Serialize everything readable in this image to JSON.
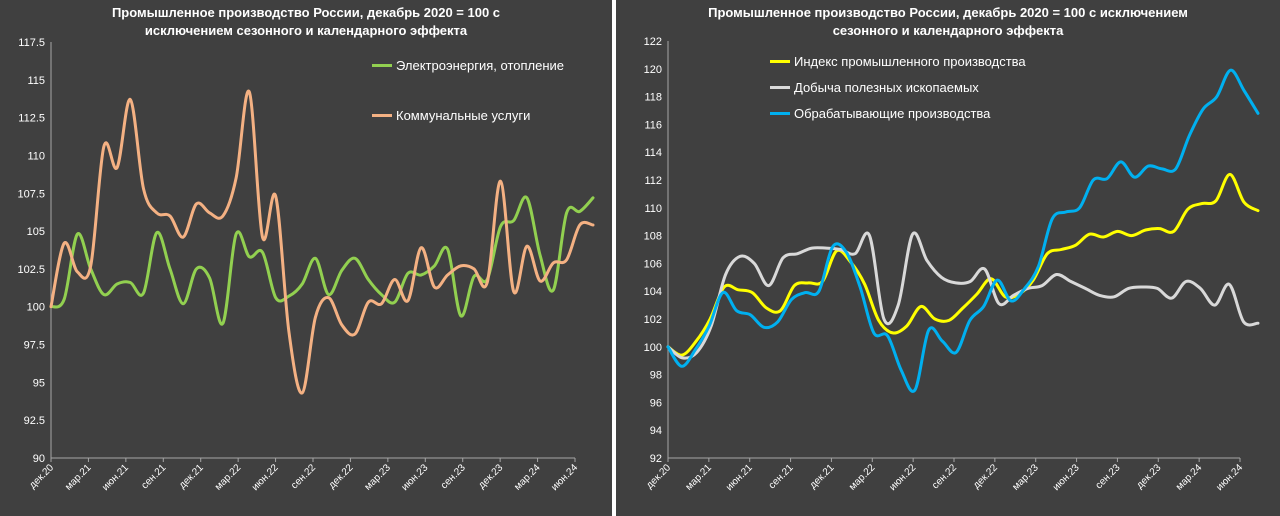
{
  "chart_data": [
    {
      "type": "line",
      "title": [
        "Промышленное производство России, декабрь 2020 = 100 с",
        "исключением сезонного и календарного эффекта"
      ],
      "ylim": [
        90,
        117.5
      ],
      "yticks": [
        "90",
        "92.5",
        "95",
        "97.5",
        "100",
        "102.5",
        "105",
        "107.5",
        "110",
        "112.5",
        "115",
        "117.5"
      ],
      "xticks": [
        "дек.20",
        "мар.21",
        "июн.21",
        "сен.21",
        "дек.21",
        "мар.22",
        "июн.22",
        "сен.22",
        "дек.22",
        "мар.23",
        "июн.23",
        "сен.23",
        "дек.23",
        "мар.24",
        "июн.24"
      ],
      "grid": false,
      "legend": "top-right",
      "series": [
        {
          "name": "Электроэнергия, отопление",
          "color": "#92d050",
          "values": [
            100,
            100.5,
            104.8,
            102.5,
            100.8,
            101.5,
            101.6,
            100.9,
            104.9,
            102.5,
            100.2,
            102.5,
            101.9,
            98.9,
            104.8,
            103.3,
            103.6,
            100.6,
            100.7,
            101.5,
            103.2,
            100.8,
            102.4,
            103.2,
            101.8,
            100.8,
            100.3,
            102.2,
            102.1,
            102.7,
            103.8,
            99.4,
            102.0,
            101.8,
            105.3,
            105.7,
            107.2,
            103.4,
            101.1,
            106.2,
            106.3,
            107.2
          ]
        },
        {
          "name": "Коммунальные услуги",
          "color": "#f4b183",
          "values": [
            100,
            104.2,
            102.3,
            102.7,
            110.6,
            109.2,
            113.7,
            107.8,
            106.2,
            106.0,
            104.6,
            106.8,
            106.2,
            106.0,
            108.5,
            114.2,
            104.6,
            107.3,
            98.3,
            94.3,
            99.3,
            100.6,
            98.8,
            98.2,
            100.3,
            100.2,
            101.8,
            100.4,
            103.9,
            101.3,
            102.1,
            102.7,
            102.5,
            101.6,
            108.3,
            101.0,
            104.0,
            101.7,
            102.9,
            103.1,
            105.4,
            105.4
          ]
        }
      ]
    },
    {
      "type": "line",
      "title": [
        "Промышленное производство России, декабрь 2020 = 100 с исключением",
        "сезонного и календарного эффекта"
      ],
      "ylim": [
        92,
        122
      ],
      "yticks": [
        "92",
        "94",
        "96",
        "98",
        "100",
        "102",
        "104",
        "106",
        "108",
        "110",
        "112",
        "114",
        "116",
        "118",
        "120",
        "122"
      ],
      "xticks": [
        "дек.20",
        "мар.21",
        "июн.21",
        "сен.21",
        "дек.21",
        "мар.22",
        "июн.22",
        "сен.22",
        "дек.22",
        "мар.23",
        "июн.23",
        "сен.23",
        "дек.23",
        "мар.24",
        "июн.24"
      ],
      "grid": false,
      "legend": "top-left",
      "series": [
        {
          "name": "Индекс промышленного производства",
          "color": "#ffff00",
          "values": [
            100,
            99.4,
            100.4,
            102.0,
            104.3,
            104.1,
            103.9,
            102.8,
            102.6,
            104.4,
            104.6,
            104.7,
            106.9,
            106.1,
            104.5,
            101.9,
            101.0,
            101.5,
            102.9,
            102.0,
            101.9,
            102.8,
            103.8,
            104.9,
            103.6,
            103.8,
            104.8,
            106.7,
            107.0,
            107.3,
            108.1,
            107.9,
            108.3,
            108.0,
            108.4,
            108.5,
            108.3,
            109.9,
            110.3,
            110.5,
            112.4,
            110.4,
            109.8
          ]
        },
        {
          "name": "Добыча полезных ископаемых",
          "color": "#d9d9d9",
          "values": [
            100,
            99.2,
            99.6,
            101.5,
            105.2,
            106.5,
            106.0,
            104.4,
            106.4,
            106.7,
            107.1,
            107.1,
            107.0,
            106.7,
            108.0,
            102.0,
            103.0,
            108.1,
            106.2,
            105.0,
            104.6,
            104.7,
            105.6,
            103.1,
            103.7,
            104.2,
            104.4,
            105.2,
            104.7,
            104.2,
            103.7,
            103.6,
            104.2,
            104.3,
            104.2,
            103.5,
            104.7,
            104.2,
            103.0,
            104.5,
            101.8,
            101.7
          ]
        },
        {
          "name": "Обрабатывающие производства",
          "color": "#00b0f0",
          "values": [
            100,
            98.6,
            99.8,
            101.5,
            103.9,
            102.6,
            102.3,
            101.4,
            101.8,
            103.4,
            103.9,
            104.0,
            107.2,
            106.8,
            104.3,
            101.0,
            100.8,
            98.3,
            96.9,
            101.2,
            100.4,
            99.6,
            101.9,
            102.9,
            104.8,
            103.3,
            104.2,
            105.8,
            109.2,
            109.7,
            110.0,
            112.0,
            112.1,
            113.3,
            112.2,
            113.0,
            112.8,
            112.8,
            115.2,
            117.1,
            118.0,
            119.9,
            118.4,
            116.8
          ]
        }
      ]
    }
  ]
}
